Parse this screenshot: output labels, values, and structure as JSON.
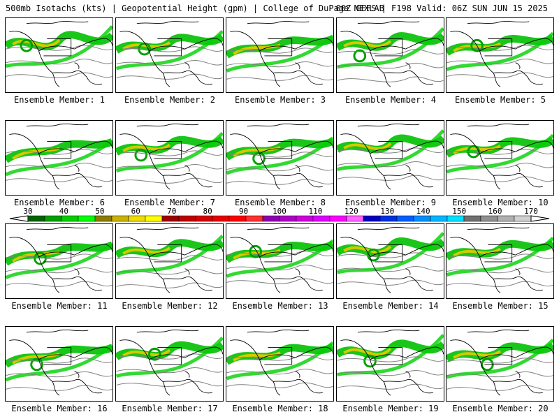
{
  "header": {
    "left": "500mb Isotachs (kts) | Geopotential Height (gpm) | College of DuPage NEXLAB",
    "right": "00Z GEFS | F198 Valid: 06Z SUN JUN 15 2025"
  },
  "members": [
    {
      "label": "Ensemble Member: 1"
    },
    {
      "label": "Ensemble Member: 2"
    },
    {
      "label": "Ensemble Member: 3"
    },
    {
      "label": "Ensemble Member: 4"
    },
    {
      "label": "Ensemble Member: 5"
    },
    {
      "label": "Ensemble Member: 6"
    },
    {
      "label": "Ensemble Member: 7"
    },
    {
      "label": "Ensemble Member: 8"
    },
    {
      "label": "Ensemble Member: 9"
    },
    {
      "label": "Ensemble Member: 10"
    },
    {
      "label": "Ensemble Member: 11"
    },
    {
      "label": "Ensemble Member: 12"
    },
    {
      "label": "Ensemble Member: 13"
    },
    {
      "label": "Ensemble Member: 14"
    },
    {
      "label": "Ensemble Member: 15"
    },
    {
      "label": "Ensemble Member: 16"
    },
    {
      "label": "Ensemble Member: 17"
    },
    {
      "label": "Ensemble Member: 18"
    },
    {
      "label": "Ensemble Member: 19"
    },
    {
      "label": "Ensemble Member: 20"
    }
  ],
  "colorscale": {
    "labels": [
      "30",
      "40",
      "50",
      "60",
      "70",
      "80",
      "90",
      "100",
      "110",
      "120",
      "130",
      "140",
      "150",
      "160",
      "170"
    ],
    "colors": [
      "#006400",
      "#00a000",
      "#00d000",
      "#00ff00",
      "#8b7d00",
      "#c8b400",
      "#eedd00",
      "#ffff00",
      "#a00000",
      "#c00000",
      "#d80000",
      "#e80000",
      "#ff0000",
      "#ff3030",
      "#9000b0",
      "#b000c8",
      "#d000e0",
      "#e000ff",
      "#ff00ff",
      "#ff60ff",
      "#0000c0",
      "#0030e0",
      "#0060ff",
      "#0090ff",
      "#00b8ff",
      "#00e0ff",
      "#707070",
      "#909090",
      "#b0b0b0",
      "#d0d0d0"
    ]
  }
}
